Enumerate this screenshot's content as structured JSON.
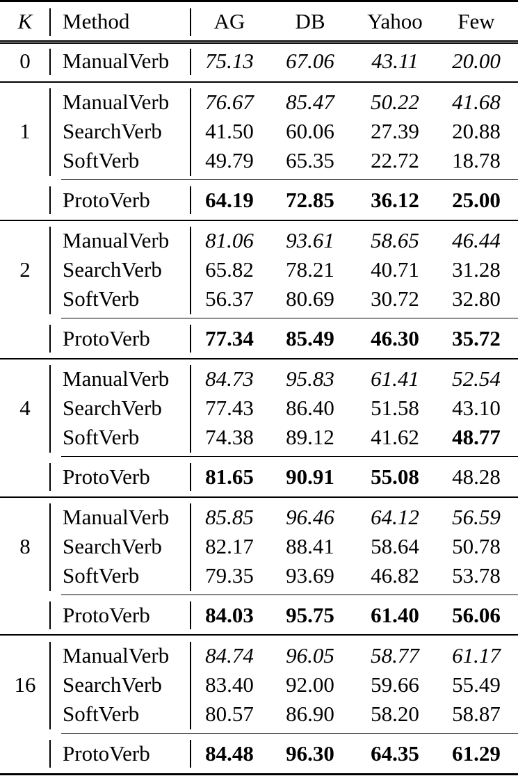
{
  "header": {
    "k": "K",
    "method": "Method",
    "columns": [
      "AG",
      "DB",
      "Yahoo",
      "Few"
    ]
  },
  "groups": [
    {
      "k": "0",
      "rows": [
        {
          "method": "ManualVerb",
          "values": [
            "75.13",
            "67.06",
            "43.11",
            "20.00"
          ],
          "style": [
            "italic",
            "italic",
            "italic",
            "italic"
          ]
        }
      ]
    },
    {
      "k": "1",
      "rows": [
        {
          "method": "ManualVerb",
          "values": [
            "76.67",
            "85.47",
            "50.22",
            "41.68"
          ],
          "style": [
            "italic",
            "italic",
            "italic",
            "italic"
          ]
        },
        {
          "method": "SearchVerb",
          "values": [
            "41.50",
            "60.06",
            "27.39",
            "20.88"
          ],
          "style": [
            "normal",
            "normal",
            "normal",
            "normal"
          ]
        },
        {
          "method": "SoftVerb",
          "values": [
            "49.79",
            "65.35",
            "22.72",
            "18.78"
          ],
          "style": [
            "normal",
            "normal",
            "normal",
            "normal"
          ]
        },
        {
          "method": "ProtoVerb",
          "values": [
            "64.19",
            "72.85",
            "36.12",
            "25.00"
          ],
          "style": [
            "bold",
            "bold",
            "bold",
            "bold"
          ]
        }
      ]
    },
    {
      "k": "2",
      "rows": [
        {
          "method": "ManualVerb",
          "values": [
            "81.06",
            "93.61",
            "58.65",
            "46.44"
          ],
          "style": [
            "italic",
            "italic",
            "italic",
            "italic"
          ]
        },
        {
          "method": "SearchVerb",
          "values": [
            "65.82",
            "78.21",
            "40.71",
            "31.28"
          ],
          "style": [
            "normal",
            "normal",
            "normal",
            "normal"
          ]
        },
        {
          "method": "SoftVerb",
          "values": [
            "56.37",
            "80.69",
            "30.72",
            "32.80"
          ],
          "style": [
            "normal",
            "normal",
            "normal",
            "normal"
          ]
        },
        {
          "method": "ProtoVerb",
          "values": [
            "77.34",
            "85.49",
            "46.30",
            "35.72"
          ],
          "style": [
            "bold",
            "bold",
            "bold",
            "bold"
          ]
        }
      ]
    },
    {
      "k": "4",
      "rows": [
        {
          "method": "ManualVerb",
          "values": [
            "84.73",
            "95.83",
            "61.41",
            "52.54"
          ],
          "style": [
            "italic",
            "italic",
            "italic",
            "italic"
          ]
        },
        {
          "method": "SearchVerb",
          "values": [
            "77.43",
            "86.40",
            "51.58",
            "43.10"
          ],
          "style": [
            "normal",
            "normal",
            "normal",
            "normal"
          ]
        },
        {
          "method": "SoftVerb",
          "values": [
            "74.38",
            "89.12",
            "41.62",
            "48.77"
          ],
          "style": [
            "normal",
            "normal",
            "normal",
            "bold"
          ]
        },
        {
          "method": "ProtoVerb",
          "values": [
            "81.65",
            "90.91",
            "55.08",
            "48.28"
          ],
          "style": [
            "bold",
            "bold",
            "bold",
            "normal"
          ]
        }
      ]
    },
    {
      "k": "8",
      "rows": [
        {
          "method": "ManualVerb",
          "values": [
            "85.85",
            "96.46",
            "64.12",
            "56.59"
          ],
          "style": [
            "italic",
            "italic",
            "italic",
            "italic"
          ]
        },
        {
          "method": "SearchVerb",
          "values": [
            "82.17",
            "88.41",
            "58.64",
            "50.78"
          ],
          "style": [
            "normal",
            "normal",
            "normal",
            "normal"
          ]
        },
        {
          "method": "SoftVerb",
          "values": [
            "79.35",
            "93.69",
            "46.82",
            "53.78"
          ],
          "style": [
            "normal",
            "normal",
            "normal",
            "normal"
          ]
        },
        {
          "method": "ProtoVerb",
          "values": [
            "84.03",
            "95.75",
            "61.40",
            "56.06"
          ],
          "style": [
            "bold",
            "bold",
            "bold",
            "bold"
          ]
        }
      ]
    },
    {
      "k": "16",
      "rows": [
        {
          "method": "ManualVerb",
          "values": [
            "84.74",
            "96.05",
            "58.77",
            "61.17"
          ],
          "style": [
            "italic",
            "italic",
            "italic",
            "italic"
          ]
        },
        {
          "method": "SearchVerb",
          "values": [
            "83.40",
            "92.00",
            "59.66",
            "55.49"
          ],
          "style": [
            "normal",
            "normal",
            "normal",
            "normal"
          ]
        },
        {
          "method": "SoftVerb",
          "values": [
            "80.57",
            "86.90",
            "58.20",
            "58.87"
          ],
          "style": [
            "normal",
            "normal",
            "normal",
            "normal"
          ]
        },
        {
          "method": "ProtoVerb",
          "values": [
            "84.48",
            "96.30",
            "64.35",
            "61.29"
          ],
          "style": [
            "bold",
            "bold",
            "bold",
            "bold"
          ]
        }
      ]
    }
  ]
}
